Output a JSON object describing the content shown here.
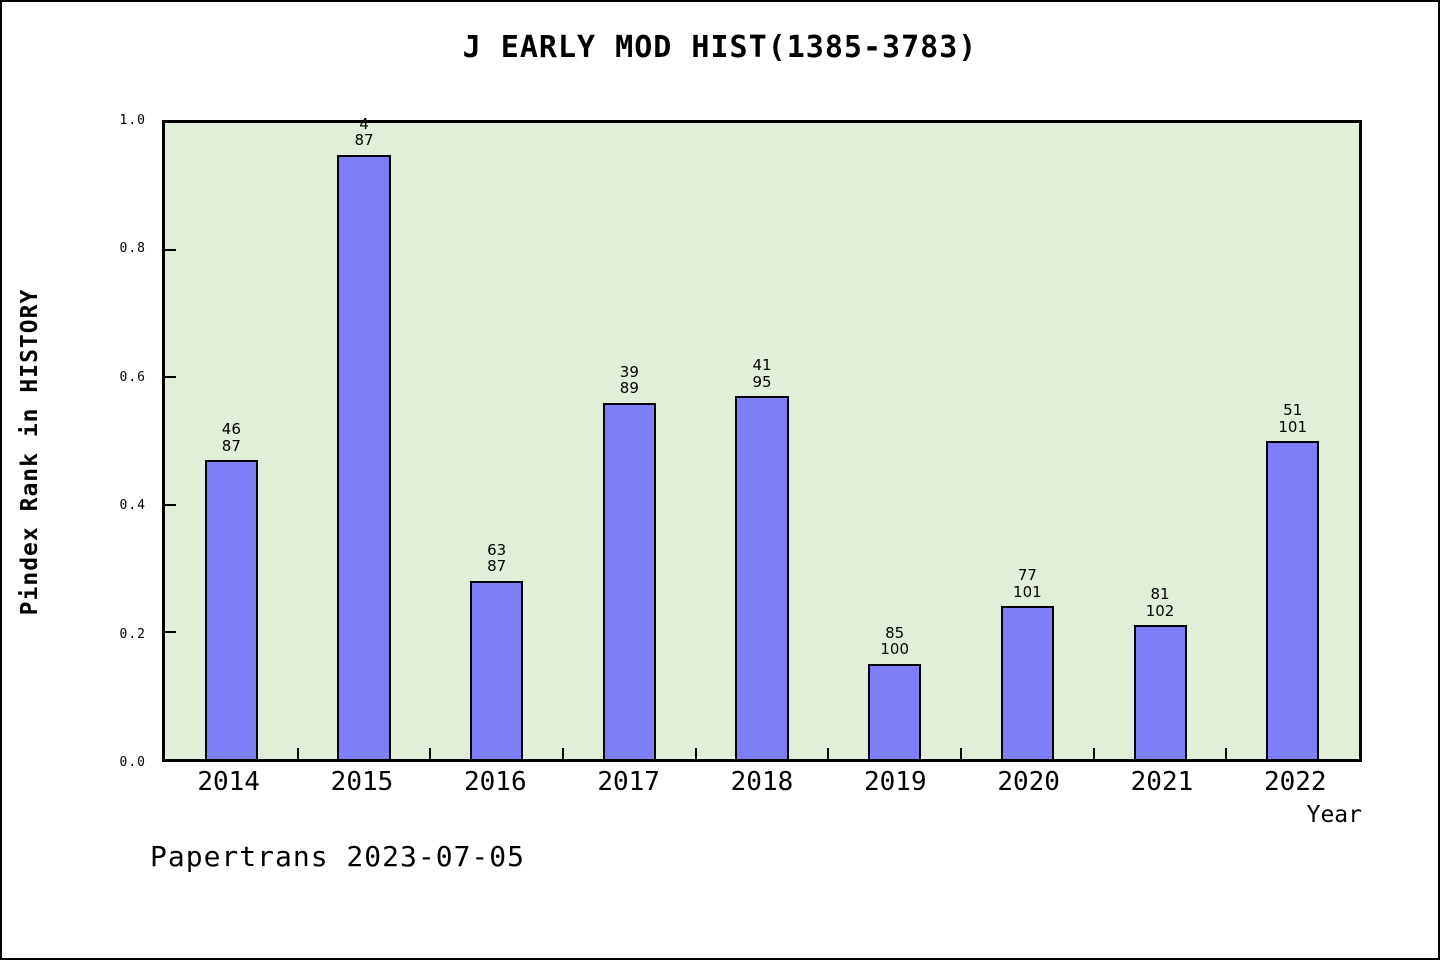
{
  "page": {
    "background": "#ffffff",
    "border_color": "#000000"
  },
  "chart_data": {
    "type": "bar",
    "title": "J EARLY MOD HIST(1385-3783)",
    "xlabel": "Year",
    "ylabel": "Pindex Rank in HISTORY",
    "ylim": [
      0.0,
      1.0
    ],
    "ytick_labels": [
      "1.0",
      "0.8",
      "0.6",
      "0.4",
      "0.2",
      "0.0"
    ],
    "grid": false,
    "legend_position": "none",
    "plot_background": "#e1efd9",
    "bar_color": "#7e7ef8",
    "bar_border_color": "#000000",
    "categories": [
      "2014",
      "2015",
      "2016",
      "2017",
      "2018",
      "2019",
      "2020",
      "2021",
      "2022"
    ],
    "values": [
      0.47,
      0.95,
      0.28,
      0.56,
      0.57,
      0.15,
      0.24,
      0.21,
      0.5
    ],
    "annotations": [
      {
        "rank": "46",
        "total": "87"
      },
      {
        "rank": "4",
        "total": "87"
      },
      {
        "rank": "63",
        "total": "87"
      },
      {
        "rank": "39",
        "total": "89"
      },
      {
        "rank": "41",
        "total": "95"
      },
      {
        "rank": "85",
        "total": "100"
      },
      {
        "rank": "77",
        "total": "101"
      },
      {
        "rank": "81",
        "total": "102"
      },
      {
        "rank": "51",
        "total": "101"
      }
    ]
  },
  "footer": {
    "watermark": "Papertrans 2023-07-05"
  }
}
